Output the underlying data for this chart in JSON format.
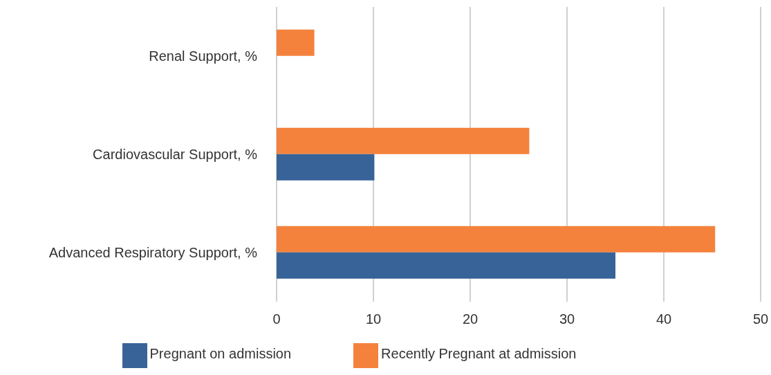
{
  "chart_data": {
    "type": "bar",
    "orientation": "horizontal",
    "categories": [
      "Renal Support, %",
      "Cardiovascular Support, %",
      "Advanced Respiratory Support, %"
    ],
    "series": [
      {
        "name": "Recently Pregnant at admission",
        "color": "#f4823c",
        "values": [
          3.9,
          26.1,
          45.3
        ]
      },
      {
        "name": "Pregnant on admission",
        "color": "#386399",
        "values": [
          null,
          10.1,
          35.0
        ]
      }
    ],
    "xlim": [
      0,
      50
    ],
    "xticks": [
      0,
      10,
      20,
      30,
      40,
      50
    ],
    "grid": "x",
    "legend": "bottom"
  }
}
